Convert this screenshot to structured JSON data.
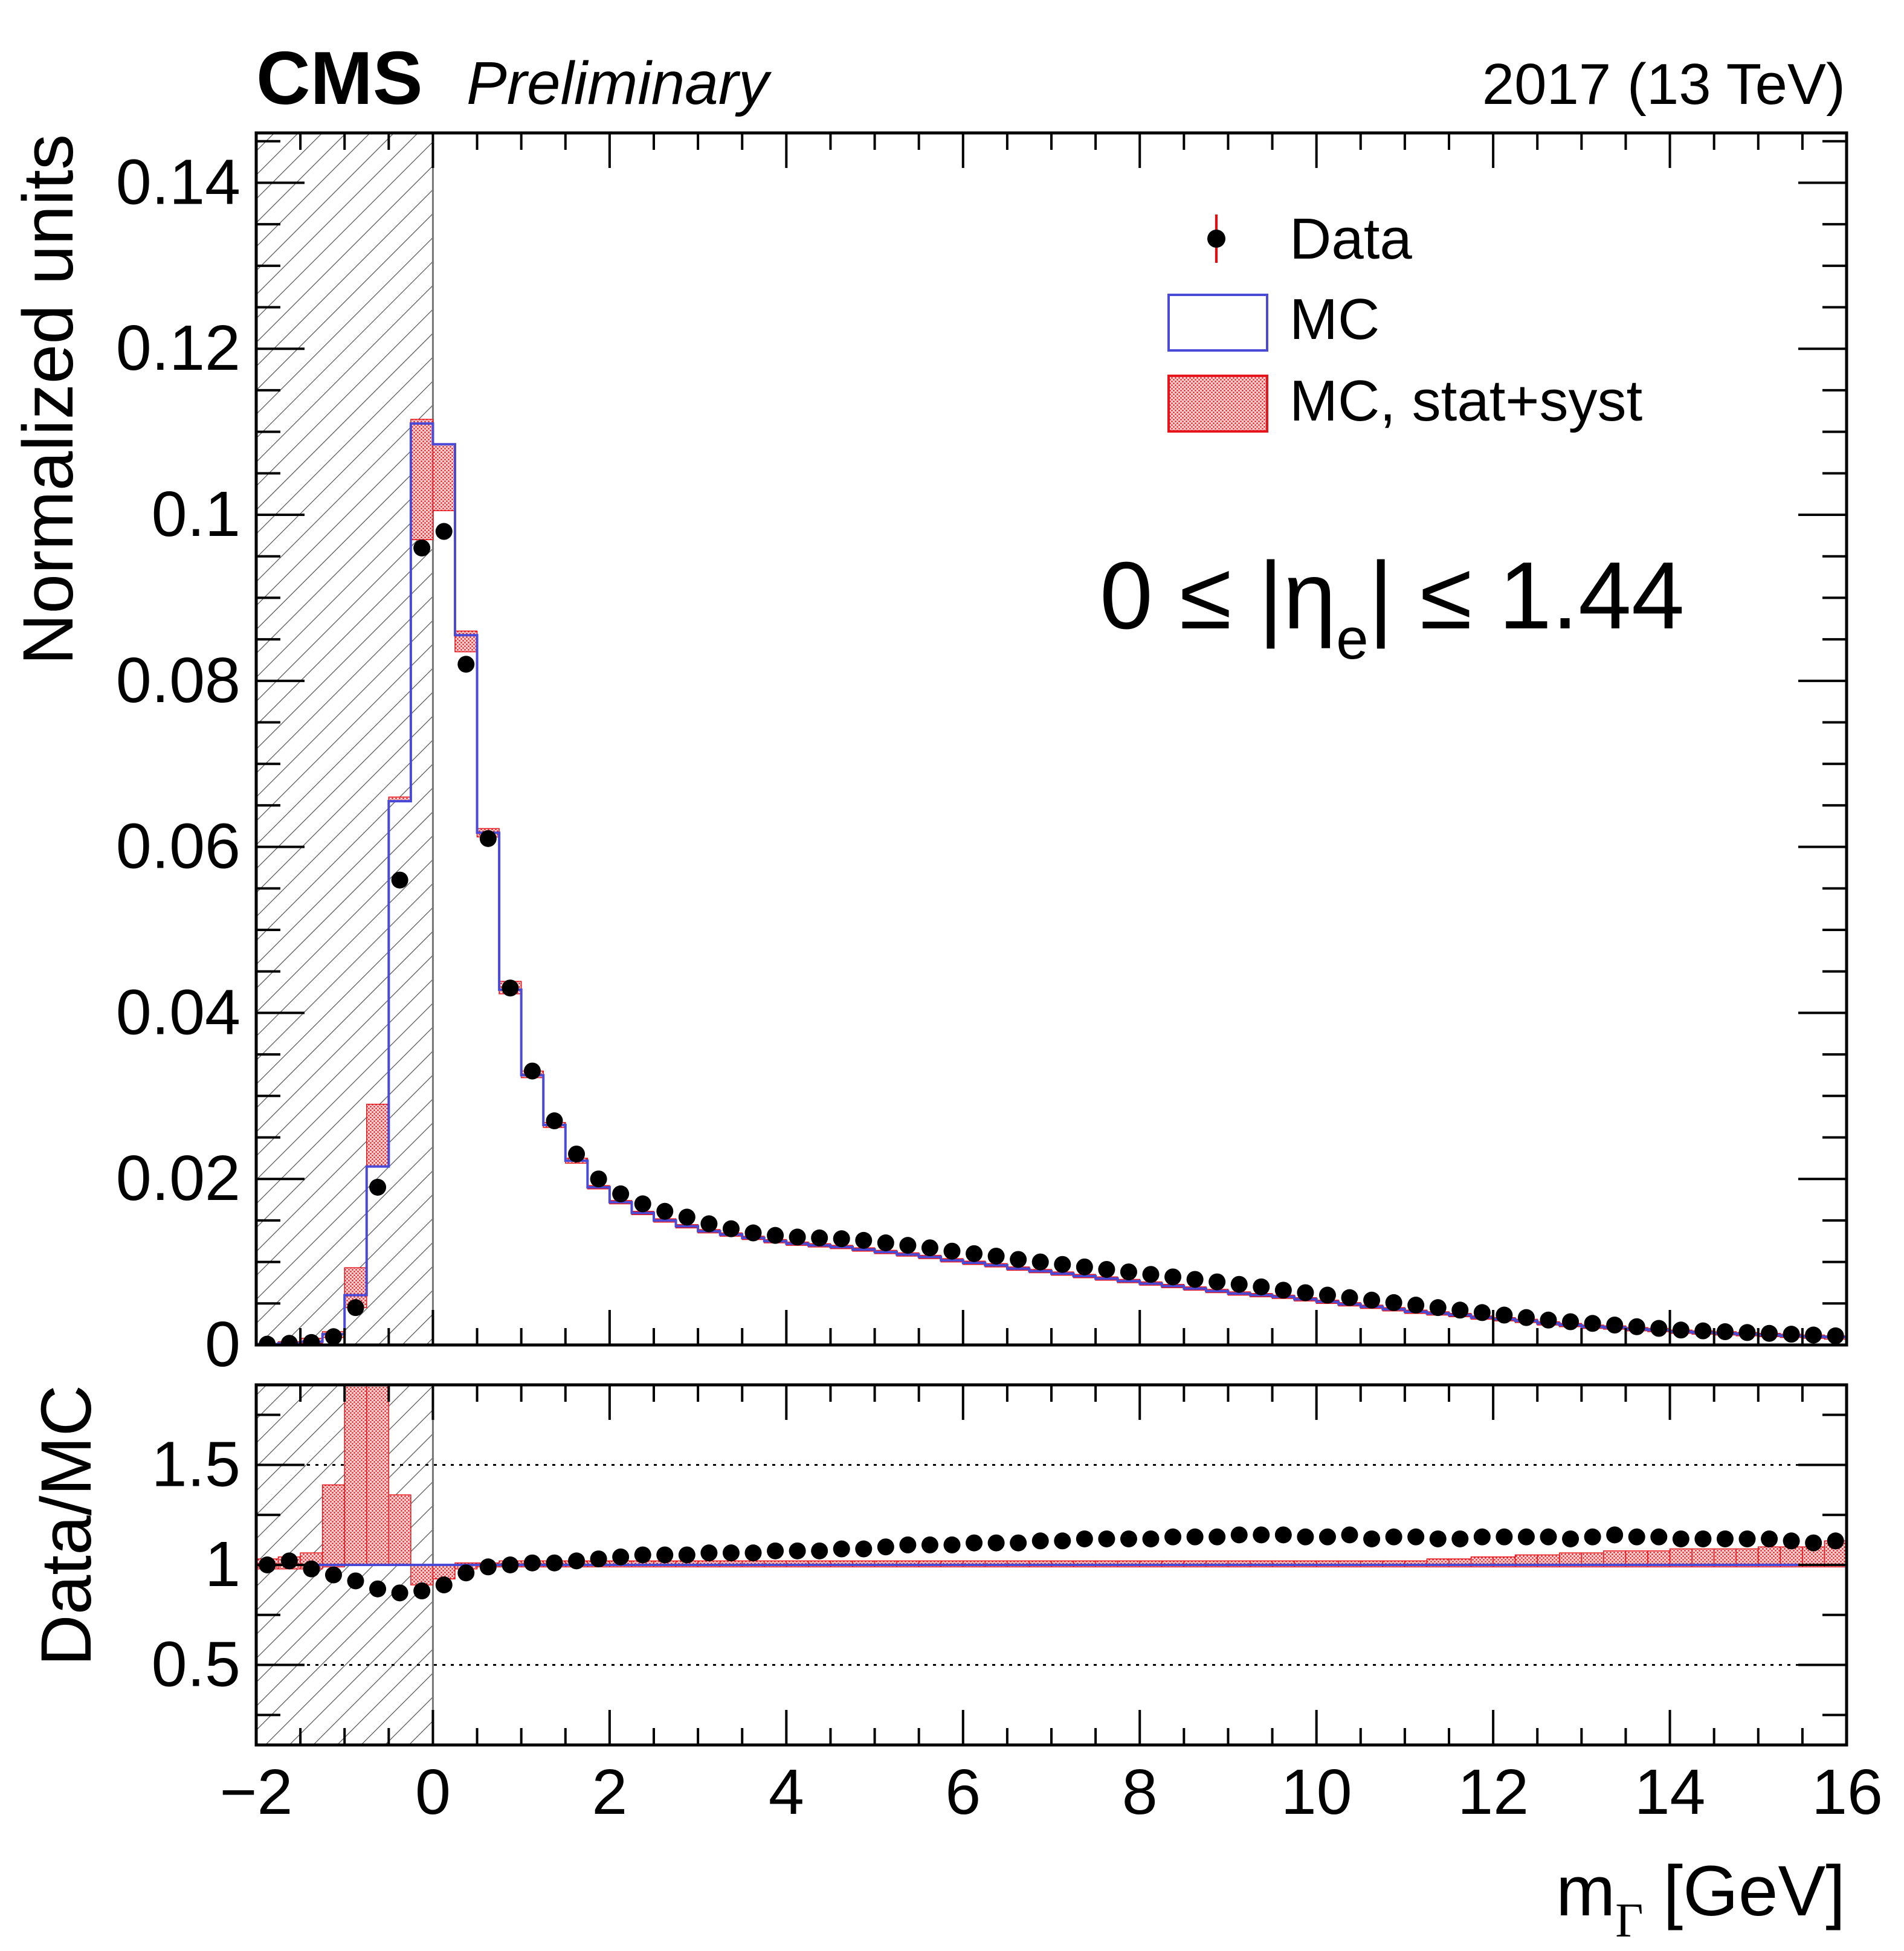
{
  "header": {
    "experiment": "CMS",
    "status": "Preliminary",
    "lumi": "2017 (13 TeV)"
  },
  "region_label": {
    "prefix": "0 ≤ |η",
    "sub": "e",
    "suffix": "| ≤ 1.44"
  },
  "legend": {
    "entries": [
      {
        "label": "Data",
        "icon": "data-point-icon"
      },
      {
        "label": "MC",
        "icon": "mc-histogram-icon"
      },
      {
        "label": "MC, stat+syst",
        "icon": "mc-uncertainty-icon"
      }
    ]
  },
  "colors": {
    "data_marker": "#000000",
    "data_error": "#ff0000",
    "mc_line": "#4a4ad6",
    "mc_band": "#e8141b",
    "hatch": "#555555",
    "reference_line": "#000000"
  },
  "chart_data": [
    {
      "type": "histogram",
      "title": "",
      "xlabel": "m_Γ [GeV]",
      "ylabel": "Normalized units",
      "xlim": [
        -2,
        16
      ],
      "ylim": [
        0,
        0.146
      ],
      "yticks": [
        0,
        0.02,
        0.04,
        0.06,
        0.08,
        0.1,
        0.12,
        0.14
      ],
      "ytick_labels": [
        "0",
        "0.02",
        "0.04",
        "0.06",
        "0.08",
        "0.1",
        "0.12",
        "0.14"
      ],
      "legend_position": "top-right",
      "excluded_region": [
        -2,
        0
      ],
      "bin_edges": [
        -2.0,
        -1.75,
        -1.5,
        -1.25,
        -1.0,
        -0.75,
        -0.5,
        -0.25,
        0.0,
        0.25,
        0.5,
        0.75,
        1.0,
        1.25,
        1.5,
        1.75,
        2.0,
        2.25,
        2.5,
        2.75,
        3.0,
        3.25,
        3.5,
        3.75,
        4.0,
        4.25,
        4.5,
        4.75,
        5.0,
        5.25,
        5.5,
        5.75,
        6.0,
        6.25,
        6.5,
        6.75,
        7.0,
        7.25,
        7.5,
        7.75,
        8.0,
        8.25,
        8.5,
        8.75,
        9.0,
        9.25,
        9.5,
        9.75,
        10.0,
        10.25,
        10.5,
        10.75,
        11.0,
        11.25,
        11.5,
        11.75,
        12.0,
        12.25,
        12.5,
        12.75,
        13.0,
        13.25,
        13.5,
        13.75,
        14.0,
        14.25,
        14.5,
        14.75,
        15.0,
        15.25,
        15.5,
        15.75,
        16.0
      ],
      "series": [
        {
          "name": "Data",
          "style": "points",
          "values": [
            0.0001,
            0.0002,
            0.0003,
            0.001,
            0.0045,
            0.019,
            0.056,
            0.096,
            0.098,
            0.082,
            0.061,
            0.043,
            0.033,
            0.027,
            0.023,
            0.02,
            0.0182,
            0.017,
            0.0161,
            0.0154,
            0.0146,
            0.014,
            0.0135,
            0.0132,
            0.013,
            0.0129,
            0.0128,
            0.0126,
            0.0123,
            0.012,
            0.0117,
            0.0113,
            0.011,
            0.0107,
            0.0103,
            0.01,
            0.0097,
            0.0094,
            0.0091,
            0.0088,
            0.0085,
            0.0082,
            0.0079,
            0.0076,
            0.0073,
            0.007,
            0.0066,
            0.0063,
            0.006,
            0.0057,
            0.0054,
            0.0051,
            0.0048,
            0.0045,
            0.0042,
            0.0039,
            0.0036,
            0.0033,
            0.003,
            0.0028,
            0.0026,
            0.0024,
            0.0022,
            0.002,
            0.0018,
            0.0017,
            0.0016,
            0.0015,
            0.0014,
            0.0013,
            0.0012,
            0.0011
          ]
        },
        {
          "name": "MC",
          "style": "step",
          "values": [
            0.0001,
            0.0002,
            0.0004,
            0.0013,
            0.006,
            0.0215,
            0.0655,
            0.111,
            0.1085,
            0.0855,
            0.0617,
            0.0428,
            0.0325,
            0.0265,
            0.0222,
            0.019,
            0.0172,
            0.0159,
            0.015,
            0.0143,
            0.0137,
            0.0133,
            0.0129,
            0.0125,
            0.0122,
            0.012,
            0.0118,
            0.0115,
            0.0112,
            0.0109,
            0.0106,
            0.0102,
            0.0099,
            0.0096,
            0.0092,
            0.0089,
            0.0086,
            0.0083,
            0.008,
            0.0077,
            0.0074,
            0.0071,
            0.0068,
            0.0065,
            0.0062,
            0.006,
            0.0058,
            0.0055,
            0.0052,
            0.0049,
            0.0046,
            0.0043,
            0.004,
            0.0038,
            0.0036,
            0.0033,
            0.0031,
            0.0029,
            0.0026,
            0.0024,
            0.0022,
            0.0021,
            0.0019,
            0.0018,
            0.0016,
            0.0015,
            0.0014,
            0.0013,
            0.0012,
            0.0011,
            0.001,
            0.00095
          ]
        },
        {
          "name": "MC, stat+syst",
          "style": "band",
          "lower": [
            0.0,
            0.0001,
            0.0002,
            0.0009,
            0.0045,
            0.0215,
            0.0655,
            0.097,
            0.1005,
            0.0835,
            0.0612,
            0.0423,
            0.0322,
            0.0262,
            0.0219,
            0.0188,
            0.017,
            0.0157,
            0.0148,
            0.0141,
            0.0135,
            0.0131,
            0.0127,
            0.0123,
            0.012,
            0.0118,
            0.0116,
            0.0113,
            0.011,
            0.0107,
            0.0104,
            0.01,
            0.0097,
            0.0094,
            0.009,
            0.0087,
            0.0084,
            0.0081,
            0.0078,
            0.0075,
            0.0072,
            0.0069,
            0.0066,
            0.0063,
            0.006,
            0.0058,
            0.0056,
            0.0053,
            0.005,
            0.0047,
            0.0044,
            0.0041,
            0.0038,
            0.0036,
            0.0034,
            0.0031,
            0.0029,
            0.0027,
            0.0024,
            0.0022,
            0.002,
            0.0019,
            0.0017,
            0.0016,
            0.0014,
            0.0013,
            0.0012,
            0.0011,
            0.001,
            0.0009,
            0.0008,
            0.0007
          ],
          "upper": [
            0.0002,
            0.0004,
            0.0008,
            0.0016,
            0.0093,
            0.029,
            0.066,
            0.1115,
            0.1085,
            0.086,
            0.0622,
            0.0438,
            0.033,
            0.0268,
            0.0225,
            0.0192,
            0.0174,
            0.0161,
            0.0152,
            0.0145,
            0.0139,
            0.0135,
            0.0131,
            0.0127,
            0.0124,
            0.0122,
            0.012,
            0.0117,
            0.0114,
            0.0111,
            0.0108,
            0.0104,
            0.0101,
            0.0098,
            0.0094,
            0.0091,
            0.0088,
            0.0085,
            0.0082,
            0.0079,
            0.0076,
            0.0073,
            0.007,
            0.0067,
            0.0064,
            0.0062,
            0.006,
            0.0057,
            0.0054,
            0.0051,
            0.0048,
            0.0045,
            0.0042,
            0.004,
            0.0038,
            0.0035,
            0.0033,
            0.0031,
            0.0028,
            0.0026,
            0.0024,
            0.0023,
            0.0021,
            0.002,
            0.0018,
            0.0017,
            0.0016,
            0.0015,
            0.0014,
            0.0013,
            0.0012,
            0.0011
          ]
        }
      ]
    },
    {
      "type": "ratio",
      "xlabel": "m_Γ [GeV]",
      "ylabel": "Data/MC",
      "xlim": [
        -2,
        16
      ],
      "ylim": [
        0.1,
        1.9
      ],
      "yticks": [
        0.5,
        1,
        1.5
      ],
      "ytick_labels": [
        "0.5",
        "1",
        "1.5"
      ],
      "xticks": [
        -2,
        0,
        2,
        4,
        6,
        8,
        10,
        12,
        14,
        16
      ],
      "xtick_labels": [
        "−2",
        "0",
        "2",
        "4",
        "6",
        "8",
        "10",
        "12",
        "14",
        "16"
      ],
      "reference_lines": [
        0.5,
        1.5
      ],
      "series": [
        {
          "name": "Data/MC",
          "style": "points",
          "values": [
            1.0,
            1.02,
            0.98,
            0.95,
            0.92,
            0.88,
            0.86,
            0.87,
            0.9,
            0.96,
            0.99,
            1.0,
            1.01,
            1.01,
            1.02,
            1.03,
            1.04,
            1.05,
            1.05,
            1.05,
            1.06,
            1.06,
            1.06,
            1.07,
            1.07,
            1.07,
            1.08,
            1.08,
            1.09,
            1.1,
            1.1,
            1.1,
            1.11,
            1.11,
            1.11,
            1.12,
            1.12,
            1.13,
            1.13,
            1.13,
            1.13,
            1.14,
            1.14,
            1.14,
            1.15,
            1.15,
            1.15,
            1.14,
            1.14,
            1.15,
            1.13,
            1.14,
            1.14,
            1.13,
            1.13,
            1.14,
            1.14,
            1.14,
            1.14,
            1.13,
            1.14,
            1.15,
            1.14,
            1.14,
            1.13,
            1.13,
            1.13,
            1.13,
            1.13,
            1.12,
            1.11,
            1.12
          ]
        },
        {
          "name": "MC stat+syst",
          "style": "band",
          "lower": [
            0.98,
            0.98,
            0.98,
            0.99,
            1.0,
            1.0,
            1.0,
            0.9,
            0.93,
            0.98,
            0.99,
            0.99,
            0.99,
            0.99,
            0.99,
            0.99,
            0.99,
            0.99,
            0.99,
            0.99,
            0.99,
            0.99,
            0.99,
            0.99,
            0.99,
            0.99,
            0.99,
            0.99,
            0.99,
            0.99,
            0.99,
            0.99,
            0.99,
            0.99,
            0.99,
            0.99,
            0.99,
            0.99,
            0.99,
            0.99,
            0.99,
            0.99,
            0.99,
            0.99,
            0.99,
            0.99,
            0.99,
            0.99,
            0.99,
            0.99,
            0.99,
            0.99,
            0.99,
            0.99,
            0.99,
            0.99,
            0.99,
            0.99,
            0.99,
            0.99,
            0.99,
            0.99,
            0.99,
            0.99,
            0.99,
            0.99,
            0.99,
            0.99,
            0.99,
            0.99,
            0.99,
            0.99
          ],
          "upper": [
            1.03,
            1.04,
            1.06,
            1.4,
            1.9,
            1.9,
            1.35,
            1.0,
            1.0,
            1.01,
            1.01,
            1.02,
            1.02,
            1.02,
            1.02,
            1.02,
            1.02,
            1.02,
            1.02,
            1.02,
            1.02,
            1.02,
            1.02,
            1.02,
            1.02,
            1.02,
            1.02,
            1.02,
            1.02,
            1.02,
            1.02,
            1.02,
            1.02,
            1.02,
            1.02,
            1.02,
            1.02,
            1.02,
            1.02,
            1.02,
            1.02,
            1.02,
            1.02,
            1.02,
            1.02,
            1.02,
            1.02,
            1.02,
            1.02,
            1.02,
            1.02,
            1.02,
            1.02,
            1.03,
            1.03,
            1.04,
            1.04,
            1.05,
            1.05,
            1.06,
            1.06,
            1.07,
            1.07,
            1.07,
            1.08,
            1.08,
            1.08,
            1.08,
            1.09,
            1.09,
            1.09,
            1.12
          ]
        }
      ]
    }
  ]
}
